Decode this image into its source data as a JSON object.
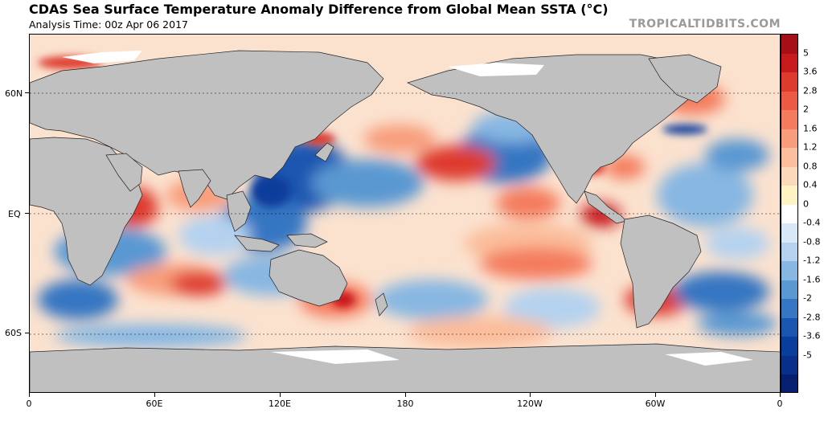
{
  "header": {
    "title": "CDAS Sea Surface Temperature Anomaly Difference from Global Mean SSTA (°C)",
    "subtitle": "Analysis Time: 00z Apr 06 2017",
    "brand": "TROPICALTIDBITS.COM"
  },
  "map": {
    "lat_labels": [
      "60N",
      "EQ",
      "60S"
    ],
    "lon_labels": [
      "0",
      "60E",
      "120E",
      "180",
      "120W",
      "60W",
      "0"
    ],
    "land_color": "#c0c0c0",
    "ice_color": "#ffffff"
  },
  "colorbar": {
    "labels": [
      "5",
      "3.6",
      "2.8",
      "2",
      "1.6",
      "1.2",
      "0.8",
      "0.4",
      "0",
      "-0.4",
      "-0.8",
      "-1.2",
      "-1.6",
      "-2",
      "-2.8",
      "-3.6",
      "-5"
    ],
    "colors": [
      "#a50f15",
      "#c8191c",
      "#de3a2d",
      "#ec5a43",
      "#f47c5d",
      "#f89d7c",
      "#fbbd9b",
      "#fdd9bc",
      "#fff3c4",
      "#ffffff",
      "#d9e8f7",
      "#b4d2ef",
      "#87b7e2",
      "#5a98d2",
      "#3676c2",
      "#1a56b0",
      "#0b3e9c",
      "#08308a",
      "#061f70"
    ]
  }
}
